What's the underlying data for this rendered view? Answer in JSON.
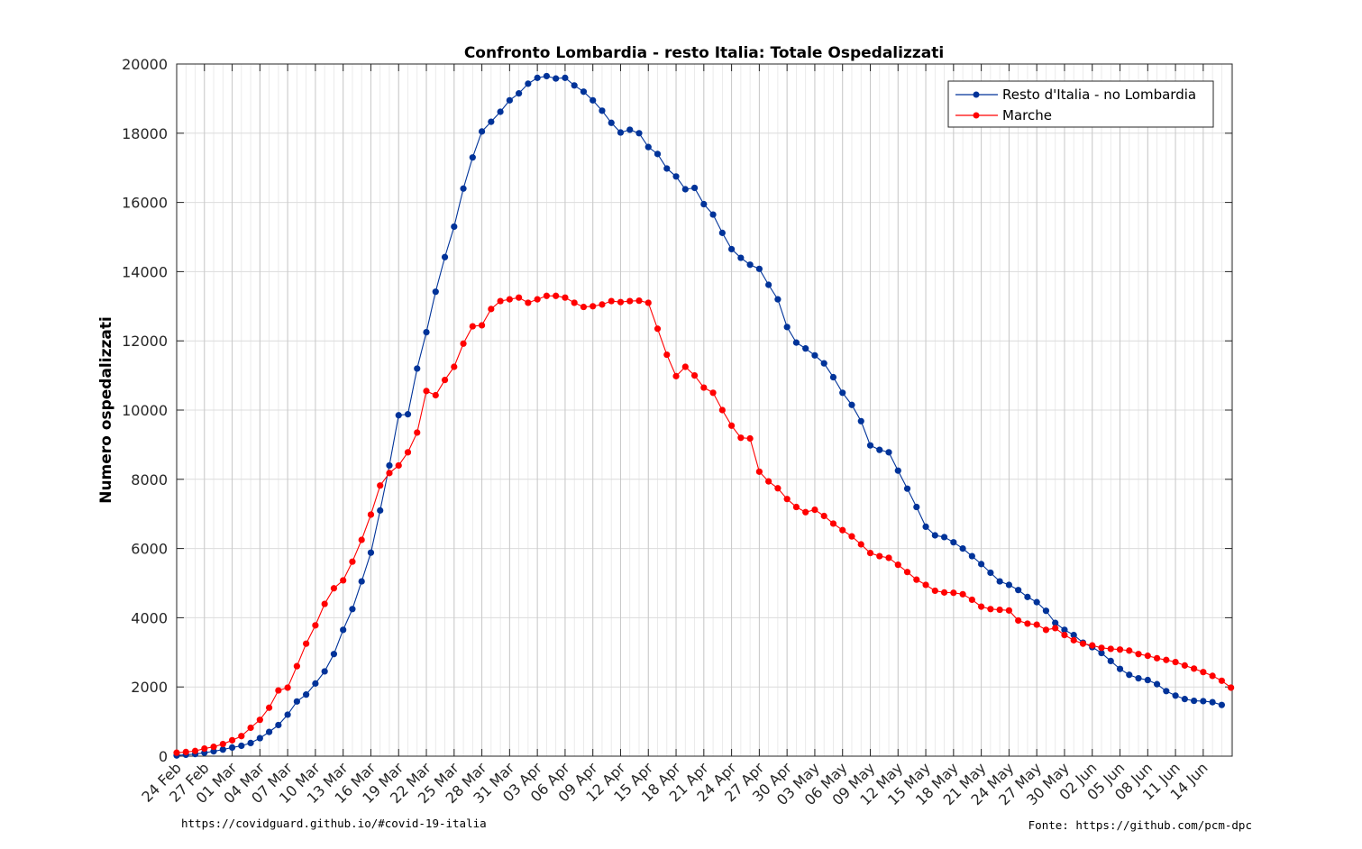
{
  "chart_data": {
    "type": "line",
    "title": "Confronto Lombardia - resto Italia: Totale Ospedalizzati",
    "xlabel": "",
    "ylabel": "Numero ospedalizzati",
    "ylim": [
      0,
      20000
    ],
    "yticks": [
      0,
      2000,
      4000,
      6000,
      8000,
      10000,
      12000,
      14000,
      16000,
      18000,
      20000
    ],
    "xticks": [
      "24 Feb",
      "27 Feb",
      "01 Mar",
      "04 Mar",
      "07 Mar",
      "10 Mar",
      "13 Mar",
      "16 Mar",
      "19 Mar",
      "22 Mar",
      "25 Mar",
      "28 Mar",
      "31 Mar",
      "03 Apr",
      "06 Apr",
      "09 Apr",
      "12 Apr",
      "15 Apr",
      "18 Apr",
      "21 Apr",
      "24 Apr",
      "27 Apr",
      "30 Apr",
      "03 May",
      "06 May",
      "09 May",
      "12 May",
      "15 May",
      "18 May",
      "21 May",
      "24 May",
      "27 May",
      "30 May",
      "02 Jun",
      "05 Jun",
      "08 Jun",
      "11 Jun",
      "14 Jun"
    ],
    "x_start": "24 Feb",
    "grid": true,
    "legend_position": "top-right",
    "series": [
      {
        "name": "Resto d'Italia - no Lombardia",
        "color": "#003399",
        "values": [
          20,
          40,
          60,
          100,
          140,
          190,
          250,
          300,
          380,
          520,
          700,
          900,
          1200,
          1580,
          1780,
          2100,
          2450,
          2950,
          3650,
          4250,
          5050,
          5880,
          7100,
          8400,
          9850,
          9880,
          11200,
          12250,
          13420,
          14420,
          15300,
          16400,
          17300,
          18050,
          18330,
          18620,
          18950,
          19150,
          19430,
          19600,
          19650,
          19580,
          19600,
          19380,
          19200,
          18950,
          18650,
          18300,
          18020,
          18100,
          18000,
          17600,
          17400,
          16980,
          16750,
          16380,
          16420,
          15950,
          15650,
          15120,
          14650,
          14400,
          14200,
          14080,
          13620,
          13200,
          12400,
          11950,
          11780,
          11580,
          11350,
          10950,
          10500,
          10150,
          9680,
          8980,
          8850,
          8780,
          8250,
          7730,
          7200,
          6630,
          6380,
          6330,
          6180,
          6000,
          5780,
          5550,
          5300,
          5050,
          4950,
          4800,
          4600,
          4450,
          4200,
          3850,
          3650,
          3500,
          3280,
          3150,
          2980,
          2750,
          2520,
          2350,
          2250,
          2200,
          2080,
          1880,
          1750,
          1650,
          1600,
          1590,
          1560,
          1480
        ]
      },
      {
        "name": "Marche",
        "color": "#ff0000",
        "values": [
          100,
          120,
          150,
          220,
          270,
          350,
          460,
          580,
          820,
          1050,
          1400,
          1900,
          1980,
          2600,
          3250,
          3780,
          4400,
          4850,
          5080,
          5620,
          6250,
          6980,
          7820,
          8180,
          8400,
          8780,
          9350,
          10550,
          10430,
          10870,
          11250,
          11920,
          12420,
          12450,
          12920,
          13150,
          13200,
          13250,
          13100,
          13200,
          13300,
          13300,
          13250,
          13100,
          12980,
          13000,
          13050,
          13150,
          13120,
          13150,
          13160,
          13100,
          12350,
          11600,
          10980,
          11250,
          11000,
          10650,
          10500,
          10000,
          9550,
          9200,
          9180,
          8220,
          7940,
          7740,
          7430,
          7200,
          7050,
          7120,
          6940,
          6720,
          6530,
          6350,
          6120,
          5870,
          5780,
          5730,
          5530,
          5320,
          5100,
          4950,
          4780,
          4730,
          4720,
          4680,
          4520,
          4320,
          4250,
          4230,
          4210,
          3920,
          3830,
          3800,
          3650,
          3700,
          3500,
          3350,
          3250,
          3200,
          3130,
          3100,
          3080,
          3050,
          2950,
          2900,
          2830,
          2780,
          2720,
          2620,
          2530,
          2430,
          2320,
          2180,
          1980
        ]
      }
    ]
  },
  "footer": {
    "left": "https://covidguard.github.io/#covid-19-italia",
    "right": "Fonte: https://github.com/pcm-dpc"
  }
}
